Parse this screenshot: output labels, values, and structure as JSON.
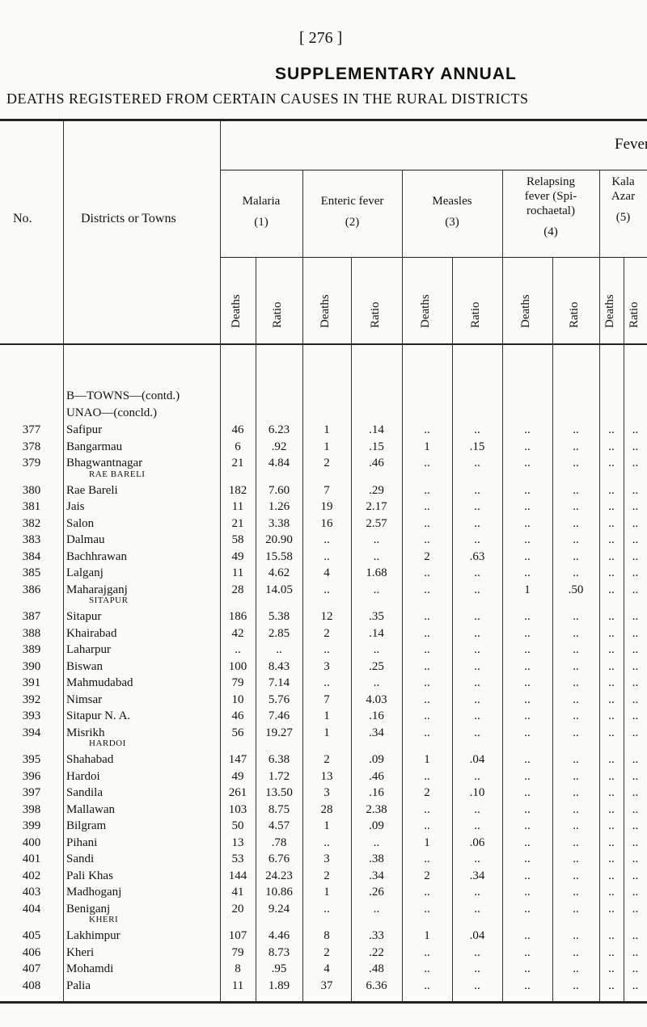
{
  "page_number": "[ 276 ]",
  "title": "SUPPLEMENTARY ANNUAL",
  "subtitle": "DEATHS REGISTERED FROM CERTAIN CAUSES IN THE RURAL DISTRICTS",
  "table": {
    "no_header": "No.",
    "district_header": "Districts or Towns",
    "group": "Fever",
    "causes": [
      {
        "name": [
          "Malaria"
        ],
        "number": "(1)",
        "sub": [
          "Deaths",
          "Ratio"
        ]
      },
      {
        "name": [
          "Enteric fever"
        ],
        "number": "(2)",
        "sub": [
          "Deaths",
          "Ratio"
        ]
      },
      {
        "name": [
          "Measles"
        ],
        "number": "(3)",
        "sub": [
          "Deaths",
          "Ratio"
        ]
      },
      {
        "name": [
          "Relapsing",
          "fever (Spi-",
          "rochaetal)"
        ],
        "number": "(4)",
        "sub": [
          "Deaths",
          "Ratio"
        ]
      },
      {
        "name": [
          "Kala",
          "Azar"
        ],
        "number": "(5)",
        "sub": [
          "Deaths",
          "Ratio"
        ]
      }
    ],
    "rows": [
      {
        "heading": "B—TOWNS—(contd.)"
      },
      {
        "heading": "UNAO—(concld.)"
      },
      {
        "no": "377",
        "name": "Safipur",
        "cells": [
          "46",
          "6.23",
          "1",
          ".14",
          "..",
          "..",
          "..",
          "..",
          "..",
          ".."
        ]
      },
      {
        "no": "378",
        "name": "Bangarmau",
        "cells": [
          "6",
          ".92",
          "1",
          ".15",
          "1",
          ".15",
          "..",
          "..",
          "..",
          ".."
        ]
      },
      {
        "no": "379",
        "name": "Bhagwantnagar",
        "cells": [
          "21",
          "4.84",
          "2",
          ".46",
          "..",
          "..",
          "..",
          "..",
          "..",
          ".."
        ]
      },
      {
        "heading": "RAE BARELI"
      },
      {
        "no": "380",
        "name": "Rae Bareli",
        "cells": [
          "182",
          "7.60",
          "7",
          ".29",
          "..",
          "..",
          "..",
          "..",
          "..",
          ".."
        ]
      },
      {
        "no": "381",
        "name": "Jais",
        "cells": [
          "11",
          "1.26",
          "19",
          "2.17",
          "..",
          "..",
          "..",
          "..",
          "..",
          ".."
        ]
      },
      {
        "no": "382",
        "name": "Salon",
        "cells": [
          "21",
          "3.38",
          "16",
          "2.57",
          "..",
          "..",
          "..",
          "..",
          "..",
          ".."
        ]
      },
      {
        "no": "383",
        "name": "Dalmau",
        "cells": [
          "58",
          "20.90",
          "..",
          "..",
          "..",
          "..",
          "..",
          "..",
          "..",
          ".."
        ]
      },
      {
        "no": "384",
        "name": "Bachhrawan",
        "cells": [
          "49",
          "15.58",
          "..",
          "..",
          "2",
          ".63",
          "..",
          "..",
          "..",
          ".."
        ]
      },
      {
        "no": "385",
        "name": "Lalganj",
        "cells": [
          "11",
          "4.62",
          "4",
          "1.68",
          "..",
          "..",
          "..",
          "..",
          "..",
          ".."
        ]
      },
      {
        "no": "386",
        "name": "Maharajganj",
        "cells": [
          "28",
          "14.05",
          "..",
          "..",
          "..",
          "..",
          "1",
          ".50",
          "..",
          ".."
        ]
      },
      {
        "heading": "SITAPUR"
      },
      {
        "no": "387",
        "name": "Sitapur",
        "cells": [
          "186",
          "5.38",
          "12",
          ".35",
          "..",
          "..",
          "..",
          "..",
          "..",
          ".."
        ]
      },
      {
        "no": "388",
        "name": "Khairabad",
        "cells": [
          "42",
          "2.85",
          "2",
          ".14",
          "..",
          "..",
          "..",
          "..",
          "..",
          ".."
        ]
      },
      {
        "no": "389",
        "name": "Laharpur",
        "cells": [
          "..",
          "..",
          "..",
          "..",
          "..",
          "..",
          "..",
          "..",
          "..",
          ".."
        ]
      },
      {
        "no": "390",
        "name": "Biswan",
        "cells": [
          "100",
          "8.43",
          "3",
          ".25",
          "..",
          "..",
          "..",
          "..",
          "..",
          ".."
        ]
      },
      {
        "no": "391",
        "name": "Mahmudabad",
        "cells": [
          "79",
          "7.14",
          "..",
          "..",
          "..",
          "..",
          "..",
          "..",
          "..",
          ".."
        ]
      },
      {
        "no": "392",
        "name": "Nimsar",
        "cells": [
          "10",
          "5.76",
          "7",
          "4.03",
          "..",
          "..",
          "..",
          "..",
          "..",
          ".."
        ]
      },
      {
        "no": "393",
        "name": "Sitapur N. A.",
        "cells": [
          "46",
          "7.46",
          "1",
          ".16",
          "..",
          "..",
          "..",
          "..",
          "..",
          ".."
        ]
      },
      {
        "no": "394",
        "name": "Misrikh",
        "cells": [
          "56",
          "19.27",
          "1",
          ".34",
          "..",
          "..",
          "..",
          "..",
          "..",
          ".."
        ]
      },
      {
        "heading": "HARDOI"
      },
      {
        "no": "395",
        "name": "Shahabad",
        "cells": [
          "147",
          "6.38",
          "2",
          ".09",
          "1",
          ".04",
          "..",
          "..",
          "..",
          ".."
        ]
      },
      {
        "no": "396",
        "name": "Hardoi",
        "cells": [
          "49",
          "1.72",
          "13",
          ".46",
          "..",
          "..",
          "..",
          "..",
          "..",
          ".."
        ]
      },
      {
        "no": "397",
        "name": "Sandila",
        "cells": [
          "261",
          "13.50",
          "3",
          ".16",
          "2",
          ".10",
          "..",
          "..",
          "..",
          ".."
        ]
      },
      {
        "no": "398",
        "name": "Mallawan",
        "cells": [
          "103",
          "8.75",
          "28",
          "2.38",
          "..",
          "..",
          "..",
          "..",
          "..",
          ".."
        ]
      },
      {
        "no": "399",
        "name": "Bilgram",
        "cells": [
          "50",
          "4.57",
          "1",
          ".09",
          "..",
          "..",
          "..",
          "..",
          "..",
          ".."
        ]
      },
      {
        "no": "400",
        "name": "Pihani",
        "cells": [
          "13",
          ".78",
          "..",
          "..",
          "1",
          ".06",
          "..",
          "..",
          "..",
          ".."
        ]
      },
      {
        "no": "401",
        "name": "Sandi",
        "cells": [
          "53",
          "6.76",
          "3",
          ".38",
          "..",
          "..",
          "..",
          "..",
          "..",
          ".."
        ]
      },
      {
        "no": "402",
        "name": "Pali Khas",
        "cells": [
          "144",
          "24.23",
          "2",
          ".34",
          "2",
          ".34",
          "..",
          "..",
          "..",
          ".."
        ]
      },
      {
        "no": "403",
        "name": "Madhoganj",
        "cells": [
          "41",
          "10.86",
          "1",
          ".26",
          "..",
          "..",
          "..",
          "..",
          "..",
          ".."
        ]
      },
      {
        "no": "404",
        "name": "Beniganj",
        "cells": [
          "20",
          "9.24",
          "..",
          "..",
          "..",
          "..",
          "..",
          "..",
          "..",
          ".."
        ]
      },
      {
        "heading": "KHERI"
      },
      {
        "no": "405",
        "name": "Lakhimpur",
        "cells": [
          "107",
          "4.46",
          "8",
          ".33",
          "1",
          ".04",
          "..",
          "..",
          "..",
          ".."
        ]
      },
      {
        "no": "406",
        "name": "Kheri",
        "cells": [
          "79",
          "8.73",
          "2",
          ".22",
          "..",
          "..",
          "..",
          "..",
          "..",
          ".."
        ]
      },
      {
        "no": "407",
        "name": "Mohamdi",
        "cells": [
          "8",
          ".95",
          "4",
          ".48",
          "..",
          "..",
          "..",
          "..",
          "..",
          ".."
        ]
      },
      {
        "no": "408",
        "name": "Palia",
        "cells": [
          "11",
          "1.89",
          "37",
          "6.36",
          "..",
          "..",
          "..",
          "..",
          "..",
          ".."
        ]
      }
    ]
  }
}
